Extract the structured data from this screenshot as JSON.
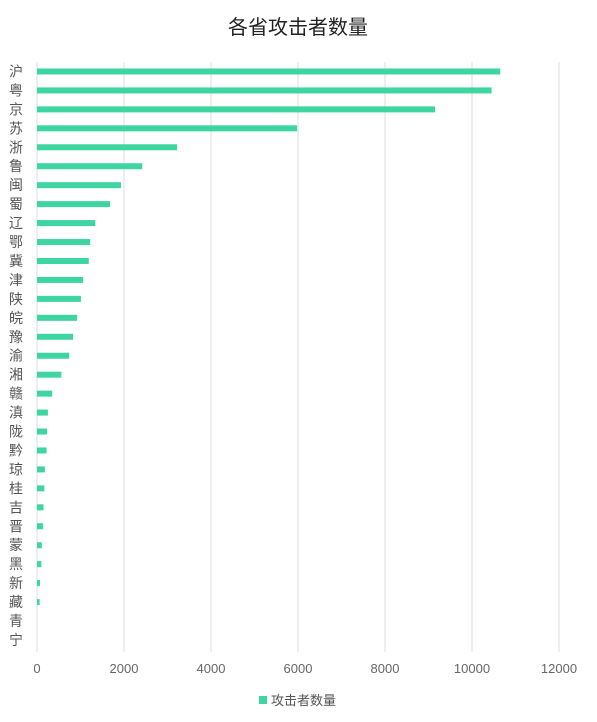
{
  "chart_data": {
    "type": "bar",
    "orientation": "horizontal",
    "title": "各省攻击者数量",
    "categories": [
      "沪",
      "粤",
      "京",
      "苏",
      "浙",
      "鲁",
      "闽",
      "蜀",
      "辽",
      "鄂",
      "冀",
      "津",
      "陕",
      "皖",
      "豫",
      "渝",
      "湘",
      "赣",
      "滇",
      "陇",
      "黔",
      "琼",
      "桂",
      "吉",
      "晋",
      "蒙",
      "黑",
      "新",
      "藏",
      "青",
      "宁"
    ],
    "series": [
      {
        "name": "攻击者数量",
        "color": "#3dd5a0",
        "values": [
          10650,
          10450,
          9150,
          5980,
          3220,
          2420,
          1930,
          1680,
          1340,
          1220,
          1190,
          1060,
          1010,
          920,
          830,
          740,
          560,
          350,
          250,
          230,
          220,
          180,
          170,
          150,
          140,
          110,
          100,
          70,
          60,
          0,
          0
        ]
      }
    ],
    "xlim": [
      0,
      12000
    ],
    "xticks": [
      0,
      2000,
      4000,
      6000,
      8000,
      10000,
      12000
    ],
    "xticklabels": [
      "0",
      "2000",
      "4000",
      "6000",
      "8000",
      "10000",
      "12000"
    ],
    "grid": "vertical",
    "legend": "bottom"
  }
}
